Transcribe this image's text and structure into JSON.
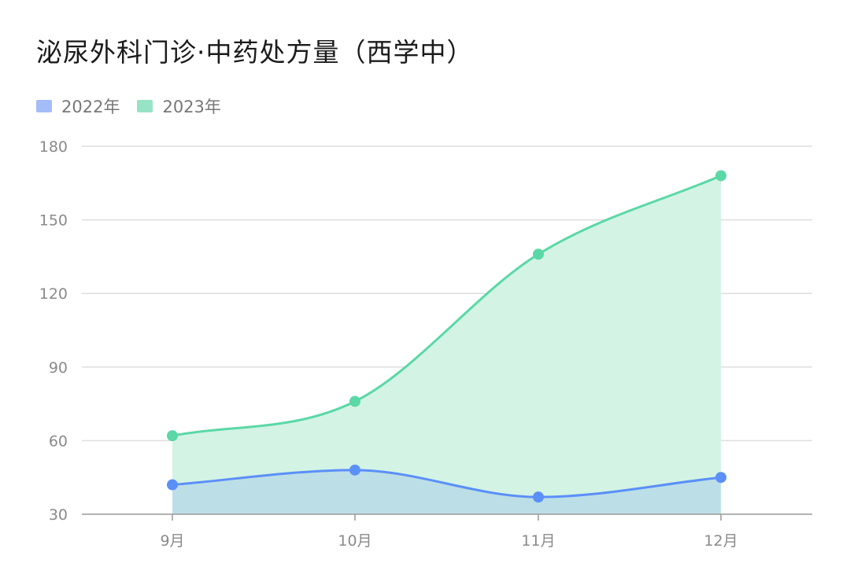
{
  "chart_data": {
    "type": "area",
    "title": "泌尿外科门诊·中药处方量（西学中）",
    "categories": [
      "9月",
      "10月",
      "11月",
      "12月"
    ],
    "series": [
      {
        "name": "2022年",
        "values": [
          42,
          48,
          37,
          45
        ],
        "color": "#5b8ff9",
        "fill": "#bcdfe7"
      },
      {
        "name": "2023年",
        "values": [
          62,
          76,
          136,
          168
        ],
        "color": "#5ad8a6",
        "fill": "#d3f3e5"
      }
    ],
    "ylim": [
      30,
      180
    ],
    "yticks": [
      30,
      60,
      90,
      120,
      150,
      180
    ],
    "ytick_labels": [
      "30",
      "60",
      "90",
      "120",
      "150",
      "180"
    ],
    "grid": true,
    "legend_position": "top-left",
    "xlabel": "",
    "ylabel": ""
  }
}
